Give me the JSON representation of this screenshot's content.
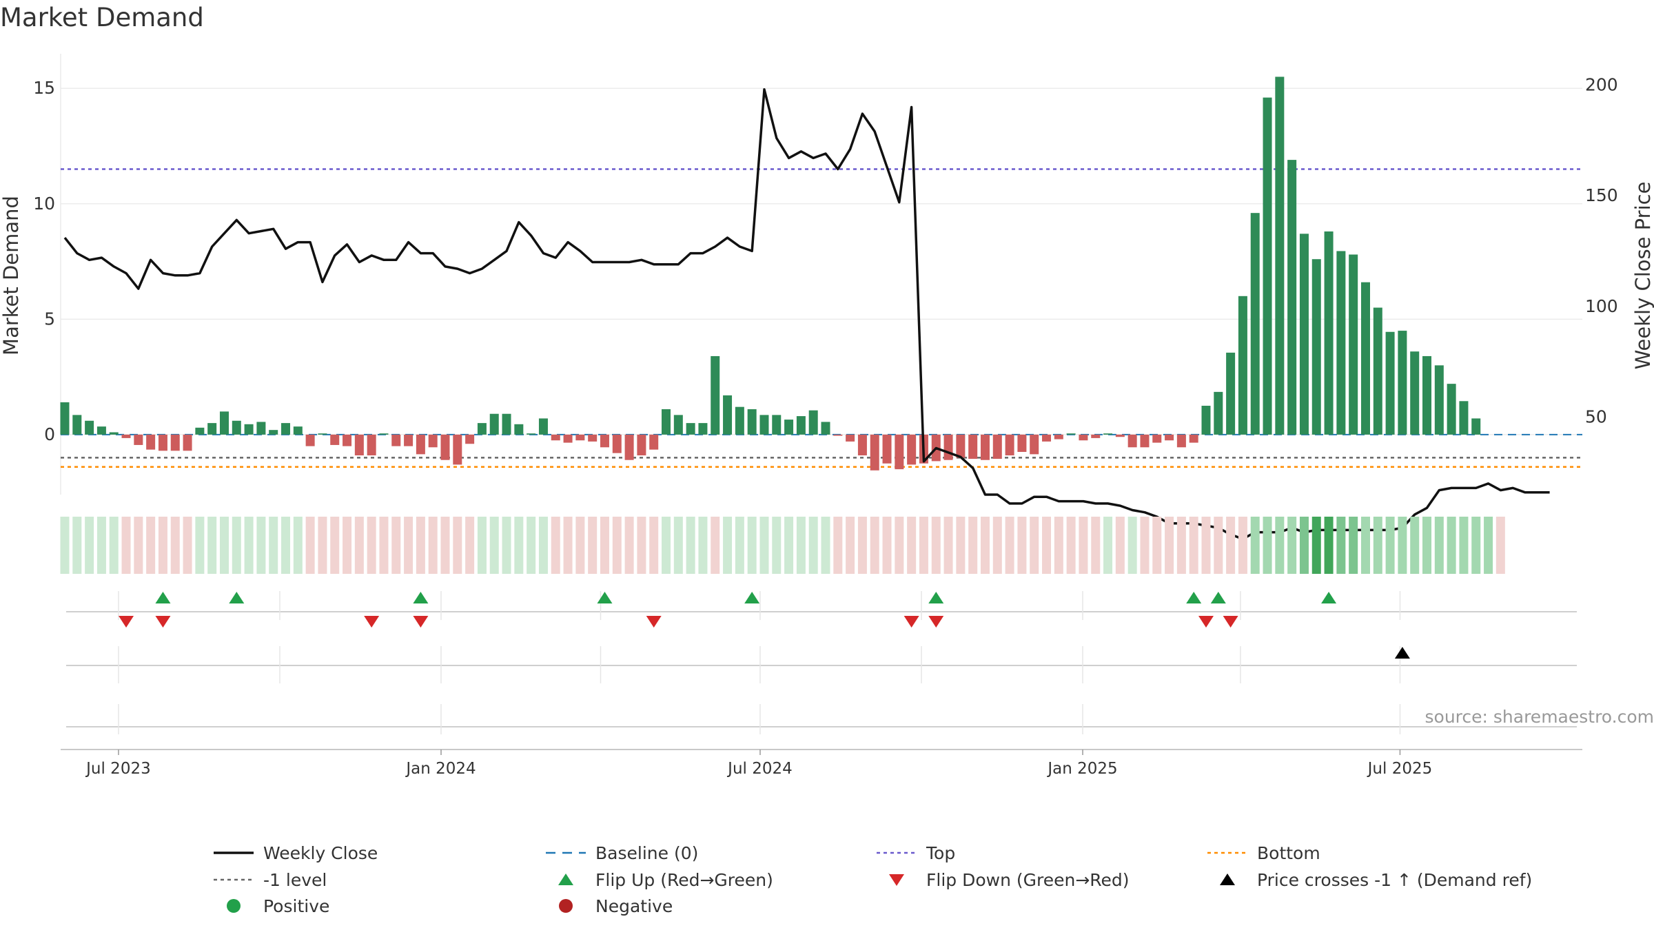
{
  "chart_data": {
    "type": "bar+line",
    "title": "Market Demand",
    "ylabel": "Market Demand",
    "y2label": "Weekly Close Price",
    "ylim": [
      -2.6,
      16.2
    ],
    "y2lim": [
      15,
      211
    ],
    "yticks": [
      0,
      5,
      10,
      15
    ],
    "y2ticks": [
      50,
      100,
      150,
      200
    ],
    "date_range": [
      "2023-05-29",
      "2025-10-13"
    ],
    "xticks": [
      {
        "date": "2023-07-01",
        "label": "Jul 2023"
      },
      {
        "date": "2024-01-01",
        "label": "Jan 2024"
      },
      {
        "date": "2024-07-01",
        "label": "Jul 2024"
      },
      {
        "date": "2025-01-01",
        "label": "Jan 2025"
      },
      {
        "date": "2025-07-01",
        "label": "Jul 2025"
      }
    ],
    "reference_lines": {
      "baseline": 0,
      "minus_one_level": -1,
      "top": 11.5,
      "bottom": -1.4
    },
    "weeks_start": "2023-05-29",
    "demand": [
      1.4,
      0.85,
      0.6,
      0.35,
      0.1,
      -0.15,
      -0.45,
      -0.65,
      -0.7,
      -0.7,
      -0.7,
      0.3,
      0.5,
      1.0,
      0.6,
      0.45,
      0.55,
      0.2,
      0.5,
      0.35,
      -0.5,
      0.05,
      -0.45,
      -0.5,
      -0.9,
      -0.9,
      0.05,
      -0.5,
      -0.5,
      -0.85,
      -0.55,
      -1.1,
      -1.3,
      -0.4,
      0.5,
      0.9,
      0.9,
      0.45,
      0.05,
      0.7,
      -0.25,
      -0.35,
      -0.25,
      -0.3,
      -0.55,
      -0.8,
      -1.1,
      -0.9,
      -0.65,
      1.1,
      0.85,
      0.5,
      0.5,
      3.4,
      1.7,
      1.2,
      1.1,
      0.85,
      0.85,
      0.65,
      0.8,
      1.05,
      0.55,
      -0.05,
      -0.3,
      -0.9,
      -1.55,
      -1.25,
      -1.5,
      -1.3,
      -1.25,
      -1.15,
      -1.1,
      -1.0,
      -1.05,
      -1.1,
      -1.05,
      -0.9,
      -0.75,
      -0.85,
      -0.3,
      -0.2,
      0.05,
      -0.25,
      -0.15,
      0.05,
      -0.1,
      -0.55,
      -0.55,
      -0.35,
      -0.25,
      -0.55,
      -0.35,
      1.25,
      1.85,
      3.55,
      6.0,
      9.6,
      14.6,
      15.5,
      11.9,
      8.7,
      7.6,
      8.8,
      7.95,
      7.8,
      6.6,
      5.5,
      4.45,
      4.5,
      3.6,
      3.4,
      3.0,
      2.2,
      1.45,
      0.7
    ],
    "intensity": [
      1,
      1,
      1,
      1,
      1,
      2,
      2,
      2,
      2,
      2,
      2,
      1,
      1,
      1,
      1,
      1,
      1,
      1,
      1,
      1,
      2,
      2,
      2,
      2,
      2,
      2,
      2,
      2,
      2,
      2,
      2,
      2,
      2,
      2,
      1,
      1,
      1,
      1,
      1,
      1,
      2,
      2,
      2,
      2,
      2,
      2,
      2,
      2,
      2,
      1,
      1,
      1,
      1,
      2,
      1,
      1,
      1,
      1,
      1,
      1,
      1,
      1,
      1,
      2,
      2,
      2,
      2,
      2,
      2,
      2,
      2,
      2,
      2,
      2,
      2,
      2,
      2,
      2,
      2,
      2,
      2,
      2,
      2,
      2,
      2,
      1,
      2,
      1,
      2,
      2,
      2,
      2,
      2,
      2,
      2,
      2,
      2,
      3,
      3,
      3,
      3,
      4,
      5,
      5,
      4,
      4,
      3,
      3,
      3,
      3,
      3,
      3,
      3,
      3,
      3,
      3,
      3,
      2
    ],
    "weekly_close": [
      131,
      124,
      121,
      122,
      118,
      115,
      108,
      121,
      115,
      114,
      114,
      115,
      127,
      133,
      139,
      133,
      134,
      135,
      126,
      129,
      129,
      111,
      123,
      128,
      120,
      123,
      121,
      121,
      129,
      124,
      124,
      118,
      117,
      115,
      117,
      121,
      125,
      138,
      132,
      124,
      122,
      129,
      125,
      120,
      120,
      120,
      120,
      121,
      119,
      119,
      119,
      124,
      124,
      127,
      131,
      127,
      125,
      198,
      176,
      167,
      170,
      167,
      169,
      162,
      171,
      187,
      179,
      163,
      147,
      190,
      30,
      36,
      34,
      32,
      27,
      15,
      15,
      11,
      11,
      14,
      14,
      12,
      12,
      12,
      11,
      11,
      10,
      8,
      7,
      5,
      2,
      2,
      2,
      1,
      0,
      -3,
      -5,
      -2,
      -2,
      -2,
      0,
      -2,
      -1,
      -1,
      -1,
      -1,
      -1,
      -1,
      -1,
      0,
      6,
      9,
      17,
      18,
      18,
      18,
      20,
      17,
      18,
      16,
      16,
      16
    ],
    "flip_up": [
      "2023-07-24",
      "2023-09-04",
      "2023-12-18",
      "2024-04-01",
      "2024-06-24",
      "2024-10-07",
      "2025-03-03",
      "2025-03-17",
      "2025-05-19"
    ],
    "flip_down": [
      "2023-07-03",
      "2023-07-24",
      "2023-11-20",
      "2023-12-18",
      "2024-04-29",
      "2024-09-23",
      "2024-10-07",
      "2025-03-10",
      "2025-03-24"
    ],
    "price_cross": [
      "2025-06-30"
    ],
    "colors": {
      "positive_bar": "#2e8b57",
      "negative_bar": "#cd5c5c",
      "close_line": "#111111",
      "baseline": "#1f77b4",
      "minus_one": "#666666",
      "top": "#6a5acd",
      "bottom": "#ff8c00",
      "flip_up": "#22a04a",
      "flip_down": "#d62728",
      "cross": "#000000",
      "positive_dot": "#22a04a",
      "negative_dot": "#b22222"
    },
    "legend": [
      {
        "key": "close",
        "label": "Weekly Close"
      },
      {
        "key": "baseline",
        "label": "Baseline (0)"
      },
      {
        "key": "top",
        "label": "Top"
      },
      {
        "key": "bottom",
        "label": "Bottom"
      },
      {
        "key": "minus1",
        "label": "-1 level"
      },
      {
        "key": "flipup",
        "label": "Flip Up (Red→Green)"
      },
      {
        "key": "flipdown",
        "label": "Flip Down (Green→Red)"
      },
      {
        "key": "cross",
        "label": "Price crosses -1 ↑ (Demand ref)"
      },
      {
        "key": "positive",
        "label": "Positive"
      },
      {
        "key": "negative",
        "label": "Negative"
      }
    ],
    "source": "source: sharemaestro.com"
  }
}
